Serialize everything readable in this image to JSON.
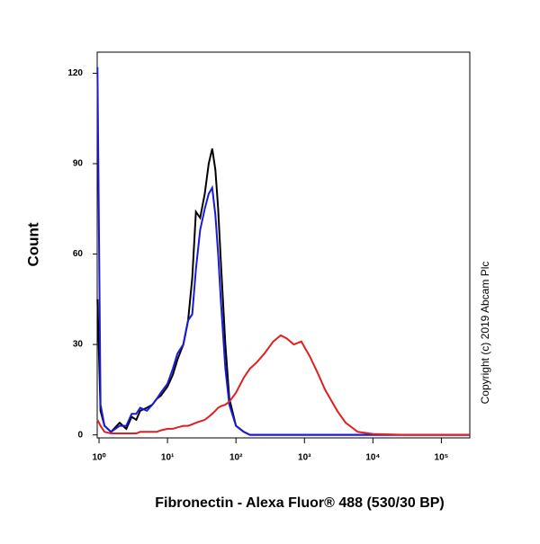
{
  "chart_data": {
    "type": "line",
    "ylabel": "Count",
    "xlabel": "Fibronectin  - Alexa Fluor® 488 (530/30 BP)",
    "annotation": "Copyright (c) 2019 Abcam Plc",
    "xscale": "log",
    "xlim": [
      0.94,
      260000
    ],
    "ylim": [
      -1,
      127
    ],
    "xticks": [
      {
        "value": 1,
        "label": "10⁰"
      },
      {
        "value": 10,
        "label": "10¹"
      },
      {
        "value": 100,
        "label": "10²"
      },
      {
        "value": 1000,
        "label": "10³"
      },
      {
        "value": 10000,
        "label": "10⁴"
      },
      {
        "value": 100000,
        "label": "10⁵"
      }
    ],
    "yticks": [
      0,
      30,
      60,
      90,
      120
    ],
    "x": [
      0.95,
      1.05,
      1.2,
      1.5,
      2,
      2.5,
      3,
      3.5,
      4,
      5,
      6,
      7,
      8,
      10,
      12,
      14,
      17,
      20,
      23,
      26,
      30,
      35,
      40,
      45,
      50,
      55,
      60,
      70,
      80,
      100,
      130,
      160,
      200,
      260,
      350,
      450,
      550,
      700,
      900,
      1200,
      1600,
      2000,
      3000,
      4000,
      6000,
      10000,
      30000,
      100000,
      260000
    ],
    "series": [
      {
        "color": "#000000",
        "values": [
          45,
          8,
          3,
          1,
          4,
          2,
          6,
          5,
          8,
          9,
          10,
          12,
          13,
          16,
          20,
          25,
          30,
          38,
          52,
          74,
          72,
          80,
          90,
          95,
          88,
          75,
          58,
          30,
          12,
          3,
          1,
          0,
          0,
          0,
          0,
          0,
          0,
          0,
          0,
          0,
          0,
          0,
          0,
          0,
          0,
          0,
          0,
          0,
          0
        ]
      },
      {
        "color": "#1a1adc",
        "values": [
          122,
          10,
          3,
          1,
          3,
          3,
          7,
          7,
          9,
          8,
          10,
          12,
          14,
          17,
          22,
          27,
          30,
          38,
          40,
          55,
          68,
          75,
          80,
          82,
          73,
          60,
          45,
          22,
          10,
          3,
          1,
          0,
          0,
          0,
          0,
          0,
          0,
          0,
          0,
          0,
          0,
          0,
          0,
          0,
          0,
          0,
          0,
          0,
          0
        ]
      },
      {
        "color": "#e02020",
        "values": [
          5,
          3,
          1,
          0.5,
          0.5,
          0.5,
          0.5,
          0.5,
          1,
          1,
          1,
          1,
          1.5,
          2,
          2,
          2.5,
          3,
          3,
          3.5,
          4,
          4.5,
          5,
          6,
          7,
          8,
          9,
          9.5,
          10,
          11,
          14,
          19,
          22,
          24,
          27,
          31,
          33,
          32,
          30,
          31,
          26,
          20,
          15,
          8,
          4,
          1,
          0.3,
          0,
          0,
          0
        ]
      }
    ]
  }
}
